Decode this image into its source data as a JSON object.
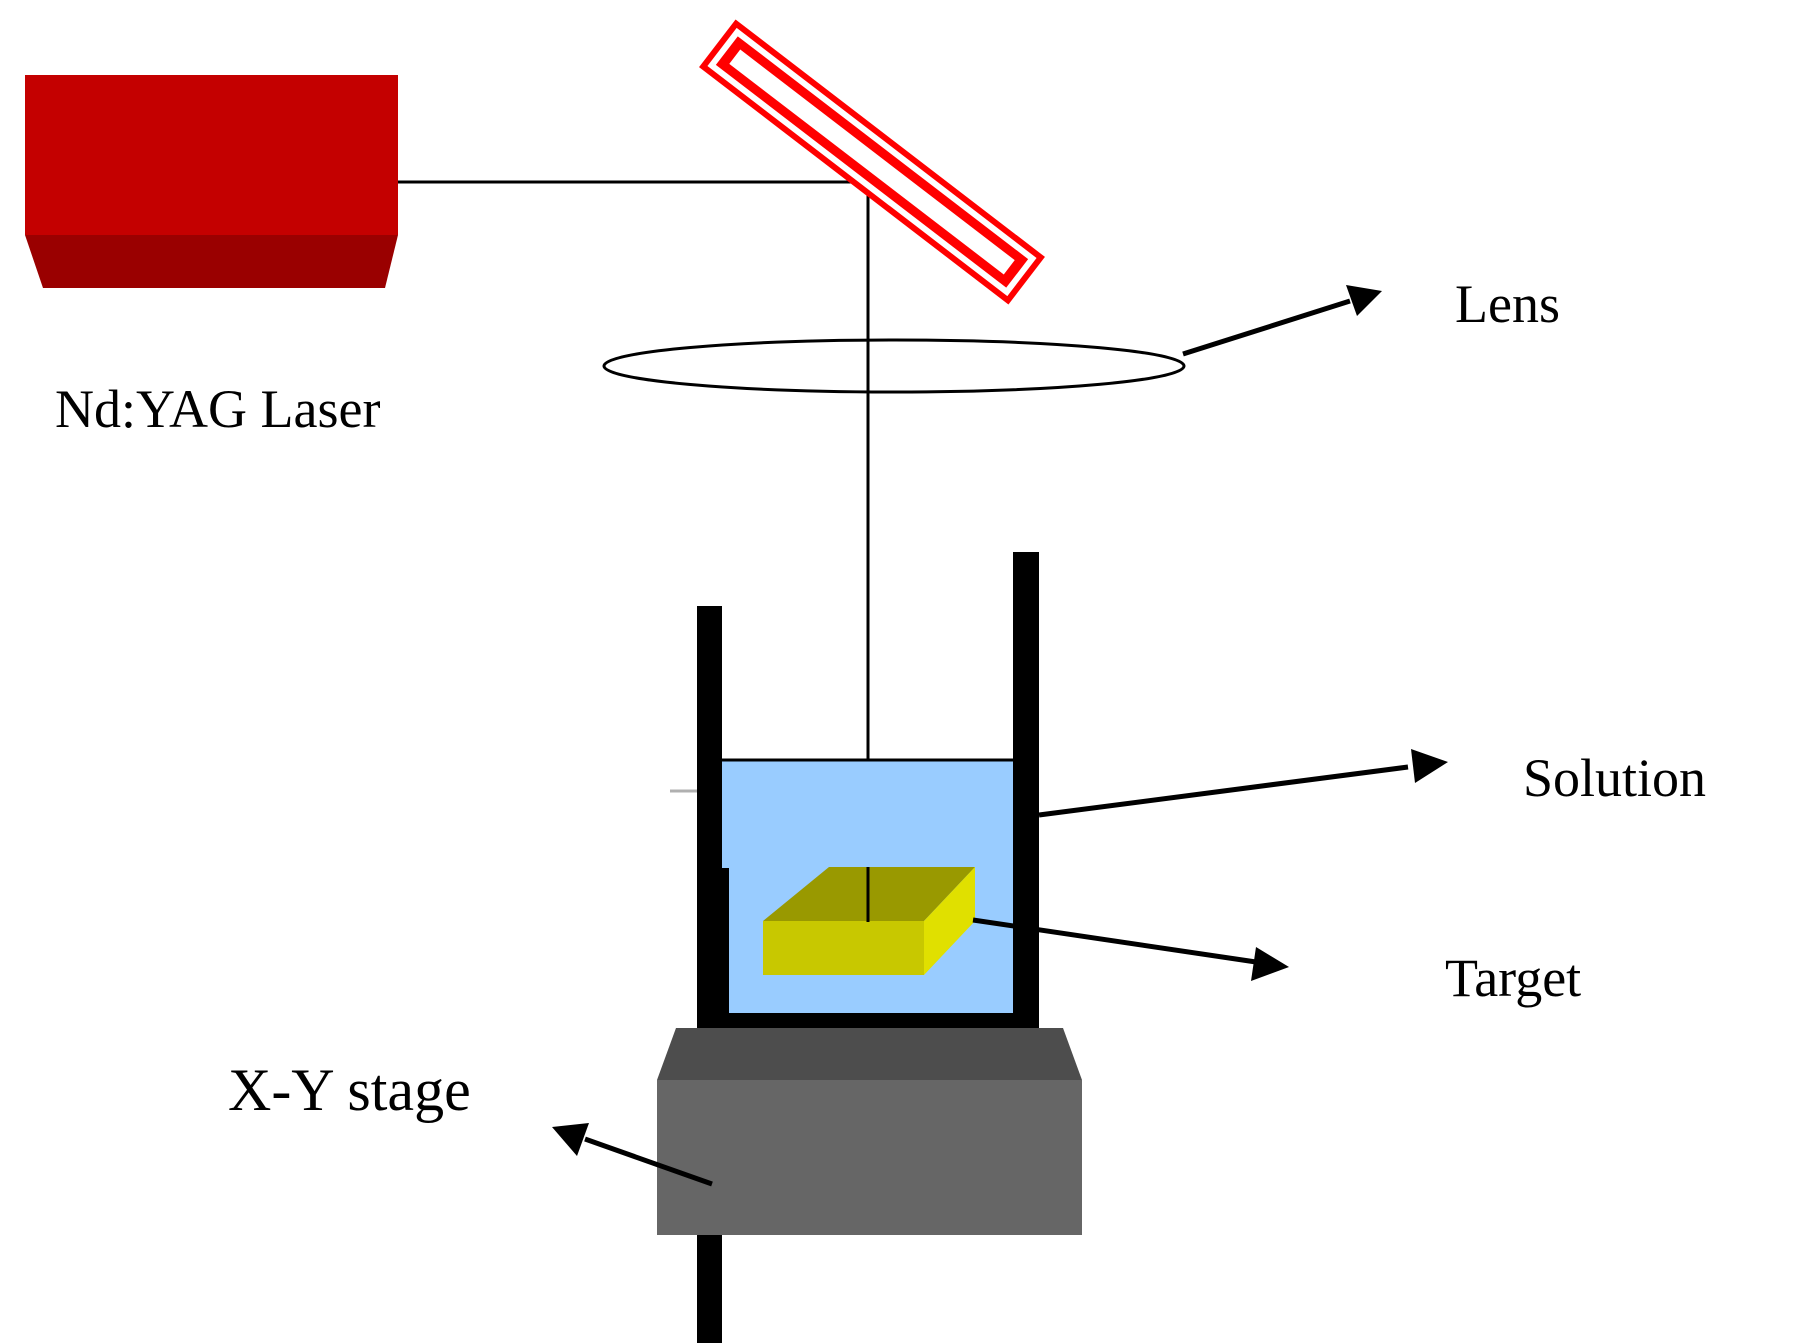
{
  "labels": {
    "laser": "Nd:YAG Laser",
    "lens": "Lens",
    "solution": "Solution",
    "target": "Target",
    "stage": "X-Y stage"
  },
  "colors": {
    "laser_body": "#c40000",
    "laser_base": "#9a0000",
    "mirror": "#ff0000",
    "solution": "#99ccff",
    "target_front": "#c8c800",
    "target_top": "#999900",
    "target_side": "#e0e000",
    "stage_top": "#4d4d4d",
    "stage_body": "#666666",
    "container_wall": "#000000"
  }
}
